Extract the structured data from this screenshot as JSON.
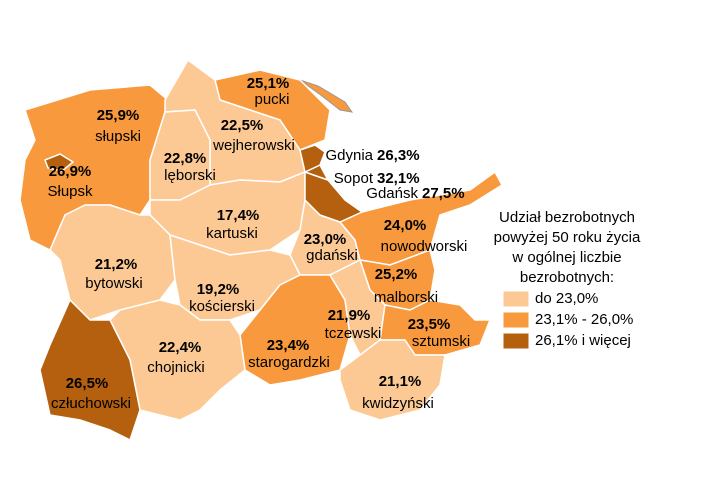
{
  "regions": [
    {
      "name": "słupski",
      "value": 25.9,
      "value_label": "25,9%",
      "color": "#f7993c"
    },
    {
      "name": "Słupsk",
      "value": 26.9,
      "value_label": "26,9%",
      "color": "#b5600e"
    },
    {
      "name": "pucki",
      "value": 25.1,
      "value_label": "25,1%",
      "color": "#f7993c"
    },
    {
      "name": "wejherowski",
      "value": 22.5,
      "value_label": "22,5%",
      "color": "#fcc995"
    },
    {
      "name": "lęborski",
      "value": 22.8,
      "value_label": "22,8%",
      "color": "#fcc995"
    },
    {
      "name": "Gdynia",
      "value": 26.3,
      "value_label": "26,3%",
      "color": "#b5600e"
    },
    {
      "name": "Sopot",
      "value": 32.1,
      "value_label": "32,1%",
      "color": "#b5600e"
    },
    {
      "name": "Gdańsk",
      "value": 27.5,
      "value_label": "27,5%",
      "color": "#b5600e"
    },
    {
      "name": "kartuski",
      "value": 17.4,
      "value_label": "17,4%",
      "color": "#fcc995"
    },
    {
      "name": "gdański",
      "value": 23.0,
      "value_label": "23,0%",
      "color": "#fcc995"
    },
    {
      "name": "nowodworski",
      "value": 24.0,
      "value_label": "24,0%",
      "color": "#f7993c"
    },
    {
      "name": "bytowski",
      "value": 21.2,
      "value_label": "21,2%",
      "color": "#fcc995"
    },
    {
      "name": "kościerski",
      "value": 19.2,
      "value_label": "19,2%",
      "color": "#fcc995"
    },
    {
      "name": "malborski",
      "value": 25.2,
      "value_label": "25,2%",
      "color": "#f7993c"
    },
    {
      "name": "starogardzki",
      "value": 23.4,
      "value_label": "23,4%",
      "color": "#f7993c"
    },
    {
      "name": "tczewski",
      "value": 21.9,
      "value_label": "21,9%",
      "color": "#fcc995"
    },
    {
      "name": "sztumski",
      "value": 23.5,
      "value_label": "23,5%",
      "color": "#f7993c"
    },
    {
      "name": "kwidzyński",
      "value": 21.1,
      "value_label": "21,1%",
      "color": "#fcc995"
    },
    {
      "name": "chojnicki",
      "value": 22.4,
      "value_label": "22,4%",
      "color": "#fcc995"
    },
    {
      "name": "człuchowski",
      "value": 26.5,
      "value_label": "26,5%",
      "color": "#b5600e"
    }
  ],
  "legend": {
    "title": [
      "Udział bezrobotnych",
      "powyżej 50 roku życia",
      "w ogólnej liczbie",
      "bezrobotnych:"
    ],
    "items": [
      {
        "label": "do 23,0%",
        "color": "#fcc995"
      },
      {
        "label": "23,1% - 26,0%",
        "color": "#f7993c"
      },
      {
        "label": "26,1% i więcej",
        "color": "#b5600e"
      }
    ]
  }
}
